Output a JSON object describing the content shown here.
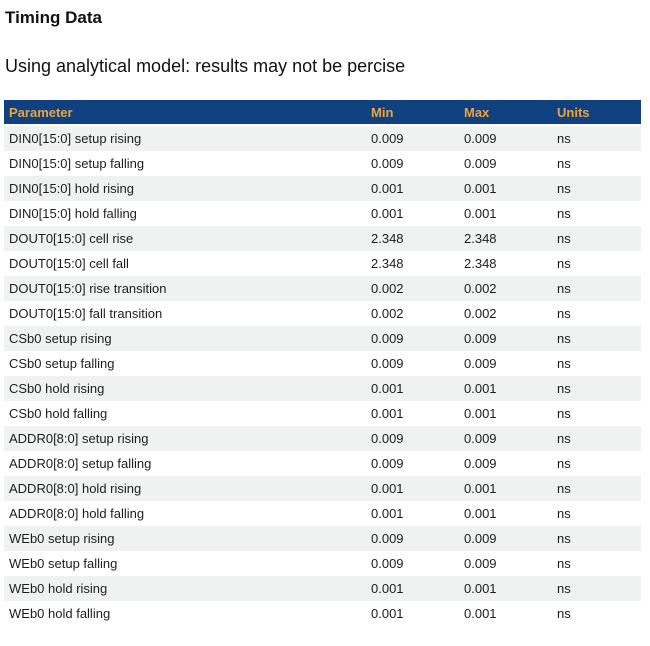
{
  "page": {
    "title": "Timing Data",
    "subtitle": "Using analytical model: results may not be percise"
  },
  "table": {
    "columns": [
      "Parameter",
      "Min",
      "Max",
      "Units"
    ],
    "rows": [
      {
        "parameter": "DIN0[15:0] setup rising",
        "min": "0.009",
        "max": "0.009",
        "units": "ns"
      },
      {
        "parameter": "DIN0[15:0] setup falling",
        "min": "0.009",
        "max": "0.009",
        "units": "ns"
      },
      {
        "parameter": "DIN0[15:0] hold rising",
        "min": "0.001",
        "max": "0.001",
        "units": "ns"
      },
      {
        "parameter": "DIN0[15:0] hold falling",
        "min": "0.001",
        "max": "0.001",
        "units": "ns"
      },
      {
        "parameter": "DOUT0[15:0] cell rise",
        "min": "2.348",
        "max": "2.348",
        "units": "ns"
      },
      {
        "parameter": "DOUT0[15:0] cell fall",
        "min": "2.348",
        "max": "2.348",
        "units": "ns"
      },
      {
        "parameter": "DOUT0[15:0] rise transition",
        "min": "0.002",
        "max": "0.002",
        "units": "ns"
      },
      {
        "parameter": "DOUT0[15:0] fall transition",
        "min": "0.002",
        "max": "0.002",
        "units": "ns"
      },
      {
        "parameter": "CSb0 setup rising",
        "min": "0.009",
        "max": "0.009",
        "units": "ns"
      },
      {
        "parameter": "CSb0 setup falling",
        "min": "0.009",
        "max": "0.009",
        "units": "ns"
      },
      {
        "parameter": "CSb0 hold rising",
        "min": "0.001",
        "max": "0.001",
        "units": "ns"
      },
      {
        "parameter": "CSb0 hold falling",
        "min": "0.001",
        "max": "0.001",
        "units": "ns"
      },
      {
        "parameter": "ADDR0[8:0] setup rising",
        "min": "0.009",
        "max": "0.009",
        "units": "ns"
      },
      {
        "parameter": "ADDR0[8:0] setup falling",
        "min": "0.009",
        "max": "0.009",
        "units": "ns"
      },
      {
        "parameter": "ADDR0[8:0] hold rising",
        "min": "0.001",
        "max": "0.001",
        "units": "ns"
      },
      {
        "parameter": "ADDR0[8:0] hold falling",
        "min": "0.001",
        "max": "0.001",
        "units": "ns"
      },
      {
        "parameter": "WEb0 setup rising",
        "min": "0.009",
        "max": "0.009",
        "units": "ns"
      },
      {
        "parameter": "WEb0 setup falling",
        "min": "0.009",
        "max": "0.009",
        "units": "ns"
      },
      {
        "parameter": "WEb0 hold rising",
        "min": "0.001",
        "max": "0.001",
        "units": "ns"
      },
      {
        "parameter": "WEb0 hold falling",
        "min": "0.001",
        "max": "0.001",
        "units": "ns"
      }
    ]
  },
  "colors": {
    "header_bg": "#0f4180",
    "header_text": "#efa339",
    "row_alt_bg": "#f0f2f1",
    "row_text": "#1d1d1d"
  }
}
